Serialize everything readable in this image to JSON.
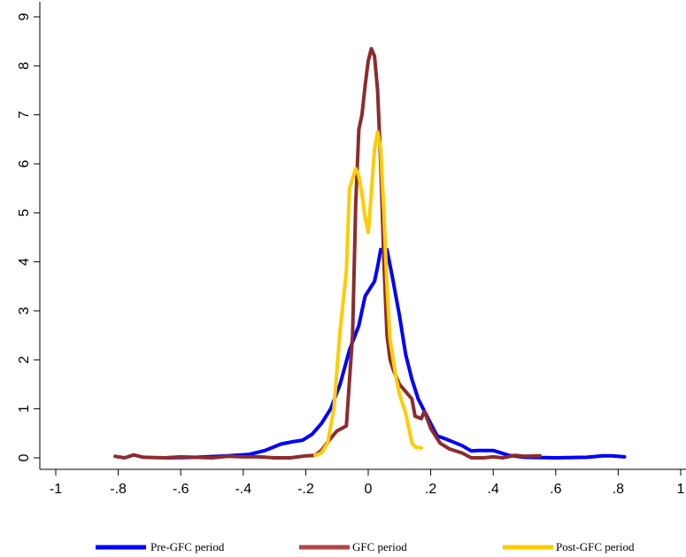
{
  "chart_data": {
    "type": "line",
    "title": "",
    "xlabel": "",
    "ylabel": "",
    "xlim": [
      -1,
      1
    ],
    "ylim": [
      0,
      9
    ],
    "x_ticks": [
      -1,
      -0.8,
      -0.6,
      -0.4,
      -0.2,
      0,
      0.2,
      0.4,
      0.6,
      0.8,
      1
    ],
    "x_tick_labels": [
      "-1",
      "-.8",
      "-.6",
      "-.4",
      "-.2",
      "0",
      ".2",
      ".4",
      ".6",
      ".8",
      "1"
    ],
    "y_ticks": [
      0,
      1,
      2,
      3,
      4,
      5,
      6,
      7,
      8,
      9
    ],
    "y_tick_labels": [
      "0",
      "1",
      "2",
      "3",
      "4",
      "5",
      "6",
      "7",
      "8",
      "9"
    ],
    "grid": false,
    "legend_position": "bottom",
    "series": [
      {
        "name": "Pre-GFC period",
        "color": "#0000ff",
        "points": [
          [
            -0.65,
            0.0
          ],
          [
            -0.55,
            0.01
          ],
          [
            -0.45,
            0.04
          ],
          [
            -0.38,
            0.07
          ],
          [
            -0.33,
            0.15
          ],
          [
            -0.28,
            0.28
          ],
          [
            -0.24,
            0.33
          ],
          [
            -0.21,
            0.36
          ],
          [
            -0.18,
            0.48
          ],
          [
            -0.15,
            0.7
          ],
          [
            -0.12,
            1.0
          ],
          [
            -0.09,
            1.5
          ],
          [
            -0.06,
            2.2
          ],
          [
            -0.03,
            2.7
          ],
          [
            -0.02,
            3.0
          ],
          [
            -0.01,
            3.3
          ],
          [
            0.0,
            3.4
          ],
          [
            0.01,
            3.5
          ],
          [
            0.02,
            3.6
          ],
          [
            0.03,
            3.9
          ],
          [
            0.04,
            4.25
          ],
          [
            0.06,
            4.25
          ],
          [
            0.08,
            3.6
          ],
          [
            0.1,
            2.9
          ],
          [
            0.12,
            2.1
          ],
          [
            0.14,
            1.6
          ],
          [
            0.16,
            1.2
          ],
          [
            0.18,
            0.95
          ],
          [
            0.2,
            0.7
          ],
          [
            0.22,
            0.45
          ],
          [
            0.25,
            0.38
          ],
          [
            0.3,
            0.25
          ],
          [
            0.33,
            0.14
          ],
          [
            0.35,
            0.15
          ],
          [
            0.4,
            0.15
          ],
          [
            0.45,
            0.05
          ],
          [
            0.5,
            0.01
          ],
          [
            0.6,
            0.0
          ],
          [
            0.7,
            0.01
          ],
          [
            0.75,
            0.04
          ],
          [
            0.78,
            0.04
          ],
          [
            0.82,
            0.02
          ]
        ]
      },
      {
        "name": "GFC period",
        "color": "#8b2c2c",
        "points": [
          [
            -0.81,
            0.03
          ],
          [
            -0.78,
            0.0
          ],
          [
            -0.75,
            0.06
          ],
          [
            -0.72,
            0.01
          ],
          [
            -0.65,
            0.0
          ],
          [
            -0.6,
            0.02
          ],
          [
            -0.5,
            0.0
          ],
          [
            -0.45,
            0.03
          ],
          [
            -0.4,
            0.02
          ],
          [
            -0.35,
            0.02
          ],
          [
            -0.3,
            0.0
          ],
          [
            -0.25,
            0.0
          ],
          [
            -0.2,
            0.04
          ],
          [
            -0.17,
            0.05
          ],
          [
            -0.15,
            0.15
          ],
          [
            -0.12,
            0.4
          ],
          [
            -0.1,
            0.55
          ],
          [
            -0.085,
            0.6
          ],
          [
            -0.07,
            0.65
          ],
          [
            -0.05,
            2.5
          ],
          [
            -0.04,
            5.2
          ],
          [
            -0.03,
            6.7
          ],
          [
            -0.02,
            7.0
          ],
          [
            -0.01,
            7.6
          ],
          [
            0.0,
            8.1
          ],
          [
            0.01,
            8.35
          ],
          [
            0.02,
            8.2
          ],
          [
            0.03,
            7.5
          ],
          [
            0.04,
            6.0
          ],
          [
            0.05,
            4.0
          ],
          [
            0.06,
            2.5
          ],
          [
            0.07,
            2.0
          ],
          [
            0.08,
            1.8
          ],
          [
            0.1,
            1.5
          ],
          [
            0.12,
            1.35
          ],
          [
            0.14,
            1.2
          ],
          [
            0.15,
            0.85
          ],
          [
            0.17,
            0.8
          ],
          [
            0.18,
            0.95
          ],
          [
            0.2,
            0.6
          ],
          [
            0.23,
            0.3
          ],
          [
            0.26,
            0.18
          ],
          [
            0.3,
            0.1
          ],
          [
            0.33,
            0.0
          ],
          [
            0.37,
            0.0
          ],
          [
            0.4,
            0.02
          ],
          [
            0.43,
            0.0
          ],
          [
            0.47,
            0.05
          ],
          [
            0.5,
            0.03
          ],
          [
            0.55,
            0.04
          ]
        ]
      },
      {
        "name": "Post-GFC period",
        "color": "#ffcc00",
        "points": [
          [
            -0.17,
            0.05
          ],
          [
            -0.15,
            0.1
          ],
          [
            -0.13,
            0.3
          ],
          [
            -0.11,
            1.0
          ],
          [
            -0.09,
            2.6
          ],
          [
            -0.07,
            3.8
          ],
          [
            -0.06,
            5.5
          ],
          [
            -0.04,
            5.9
          ],
          [
            -0.03,
            5.75
          ],
          [
            -0.02,
            5.4
          ],
          [
            -0.01,
            4.9
          ],
          [
            0.0,
            4.6
          ],
          [
            0.01,
            5.4
          ],
          [
            0.02,
            6.3
          ],
          [
            0.03,
            6.65
          ],
          [
            0.04,
            6.3
          ],
          [
            0.05,
            5.0
          ],
          [
            0.06,
            3.5
          ],
          [
            0.07,
            2.4
          ],
          [
            0.08,
            2.0
          ],
          [
            0.09,
            1.6
          ],
          [
            0.1,
            1.3
          ],
          [
            0.11,
            1.1
          ],
          [
            0.12,
            0.9
          ],
          [
            0.13,
            0.6
          ],
          [
            0.14,
            0.3
          ],
          [
            0.15,
            0.22
          ],
          [
            0.17,
            0.2
          ]
        ]
      }
    ]
  }
}
